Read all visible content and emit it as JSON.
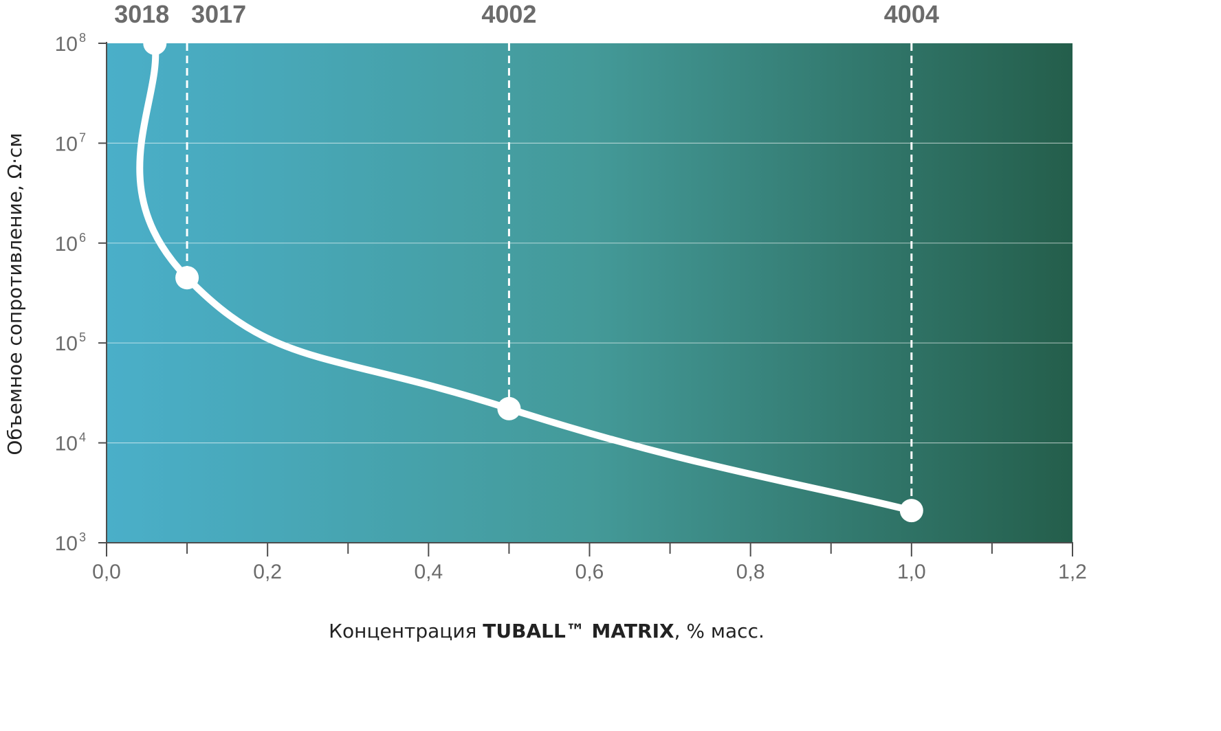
{
  "chart_data": {
    "type": "line",
    "xlabel_plain": "Концентрация ",
    "xlabel_bold": "TUBALL™ MATRIX",
    "xlabel_tail": ", % масс.",
    "ylabel": "Объемное сопротивление, Ω·см",
    "xlim": [
      0,
      1.2
    ],
    "ylim": [
      1000,
      100000000
    ],
    "y_scale": "log",
    "x_ticks": [
      0,
      0.2,
      0.4,
      0.6,
      0.8,
      1.0,
      1.2
    ],
    "x_tick_labels": [
      "0,0",
      "0,2",
      "0,4",
      "0,6",
      "0,8",
      "1,0",
      "1,2"
    ],
    "y_ticks": [
      {
        "value": 1000,
        "base": "10",
        "exp": "3"
      },
      {
        "value": 10000,
        "base": "10",
        "exp": "4"
      },
      {
        "value": 100000,
        "base": "10",
        "exp": "5"
      },
      {
        "value": 1000000,
        "base": "10",
        "exp": "6"
      },
      {
        "value": 10000000,
        "base": "10",
        "exp": "7"
      },
      {
        "value": 100000000,
        "base": "10",
        "exp": "8"
      }
    ],
    "grid": true,
    "series": [
      {
        "points": [
          {
            "x": 0.06,
            "y": 100000000,
            "label": "3018"
          },
          {
            "x": 0.1,
            "y": 450000,
            "label": "3017"
          },
          {
            "x": 0.5,
            "y": 22000,
            "label": "4002"
          },
          {
            "x": 1.0,
            "y": 2100,
            "label": "4004"
          }
        ]
      }
    ],
    "background_gradient": [
      "#4aafc9",
      "#449a99",
      "#245e4b"
    ],
    "line_color": "#ffffff"
  }
}
